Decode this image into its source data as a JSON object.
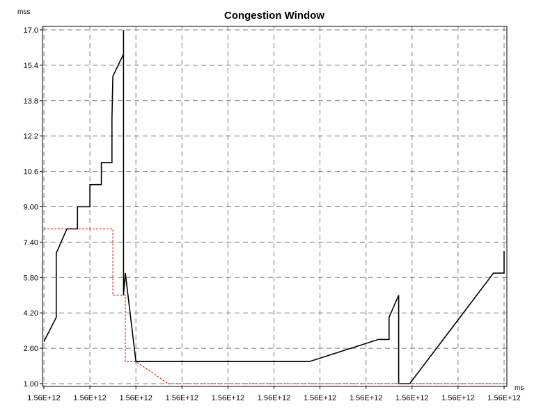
{
  "chart_data": {
    "type": "line",
    "title": "Congestion Window",
    "ylabel": "mss",
    "xlabel": "ms",
    "ylim": [
      1.0,
      17.0
    ],
    "xlim": [
      0,
      10
    ],
    "y_ticks": [
      "1.00",
      "2.60",
      "4.20",
      "5.80",
      "7.40",
      "9.00",
      "10.6",
      "12.2",
      "13.8",
      "15.4",
      "17.0"
    ],
    "x_ticks": [
      "1.56E+12",
      "1.56E+12",
      "1.56E+12",
      "1.56E+12",
      "1.56E+12",
      "1.56E+12",
      "1.56E+12",
      "1.56E+12",
      "1.56E+12",
      "1.56E+12",
      "1.56E+12"
    ],
    "grid": true,
    "series": [
      {
        "color": "#000000",
        "style": "solid",
        "points": [
          [
            0.0,
            2.9
          ],
          [
            0.27,
            4.0
          ],
          [
            0.27,
            6.9
          ],
          [
            0.5,
            8.0
          ],
          [
            0.73,
            8.0
          ],
          [
            0.73,
            9.0
          ],
          [
            1.0,
            9.0
          ],
          [
            1.0,
            10.0
          ],
          [
            1.25,
            10.0
          ],
          [
            1.25,
            11.0
          ],
          [
            1.48,
            11.0
          ],
          [
            1.48,
            13.0
          ],
          [
            1.5,
            14.9
          ],
          [
            1.73,
            15.9
          ],
          [
            1.73,
            17.0
          ],
          [
            1.73,
            5.0
          ],
          [
            1.77,
            6.0
          ],
          [
            2.0,
            2.0
          ],
          [
            5.77,
            2.0
          ],
          [
            7.27,
            3.0
          ],
          [
            7.5,
            3.0
          ],
          [
            7.5,
            4.0
          ],
          [
            7.71,
            5.0
          ],
          [
            7.71,
            1.0
          ],
          [
            7.95,
            1.0
          ],
          [
            9.77,
            6.0
          ],
          [
            10.0,
            6.0
          ],
          [
            10.0,
            7.0
          ]
        ]
      },
      {
        "color": "#cc0000",
        "style": "dashed",
        "points": [
          [
            0.0,
            8.0
          ],
          [
            1.5,
            8.0
          ],
          [
            1.5,
            5.0
          ],
          [
            1.77,
            5.0
          ],
          [
            1.77,
            2.0
          ],
          [
            2.0,
            2.0
          ],
          [
            2.7,
            1.0
          ],
          [
            10.0,
            1.0
          ]
        ]
      }
    ]
  }
}
